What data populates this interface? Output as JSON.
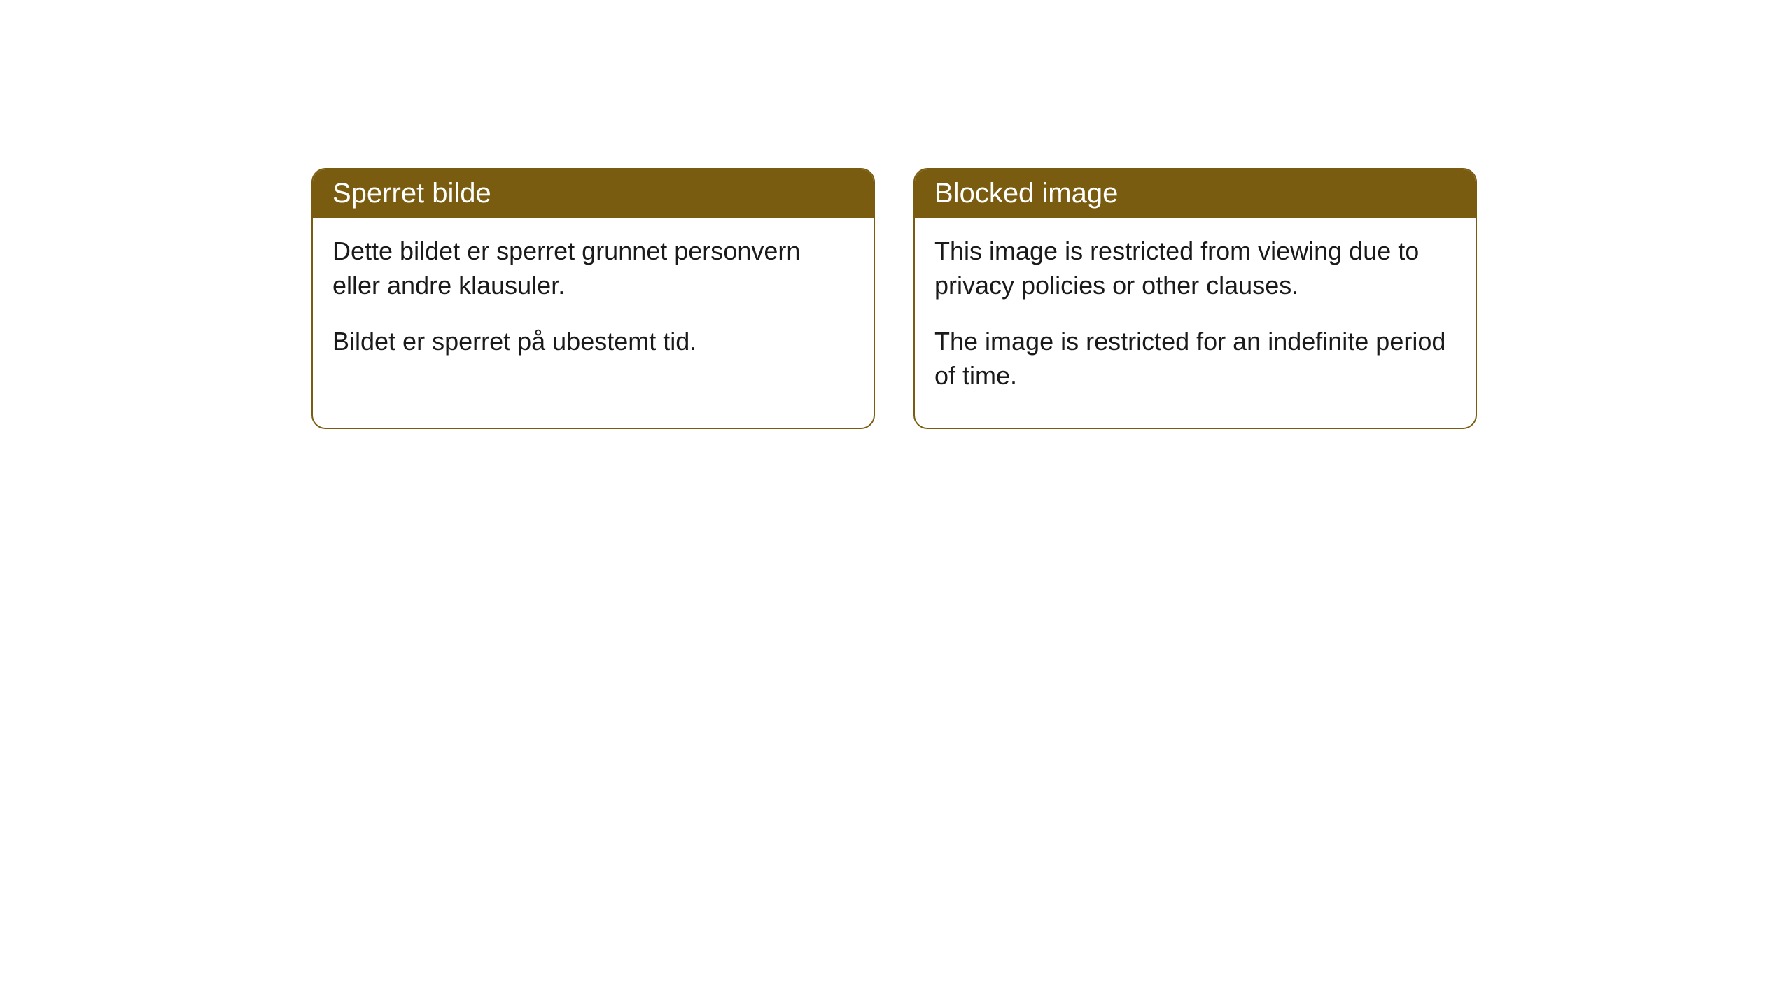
{
  "cards": [
    {
      "title": "Sperret bilde",
      "paragraph1": "Dette bildet er sperret grunnet personvern eller andre klausuler.",
      "paragraph2": "Bildet er sperret på ubestemt tid."
    },
    {
      "title": "Blocked image",
      "paragraph1": "This image is restricted from viewing due to privacy policies or other clauses.",
      "paragraph2": "The image is restricted for an indefinite period of time."
    }
  ],
  "styling": {
    "header_bg_color": "#7a5c10",
    "header_text_color": "#ffffff",
    "border_color": "#7a5c10",
    "body_bg_color": "#ffffff",
    "body_text_color": "#1a1a1a",
    "page_bg_color": "#ffffff",
    "border_radius": 20,
    "title_fontsize": 40,
    "body_fontsize": 36
  }
}
